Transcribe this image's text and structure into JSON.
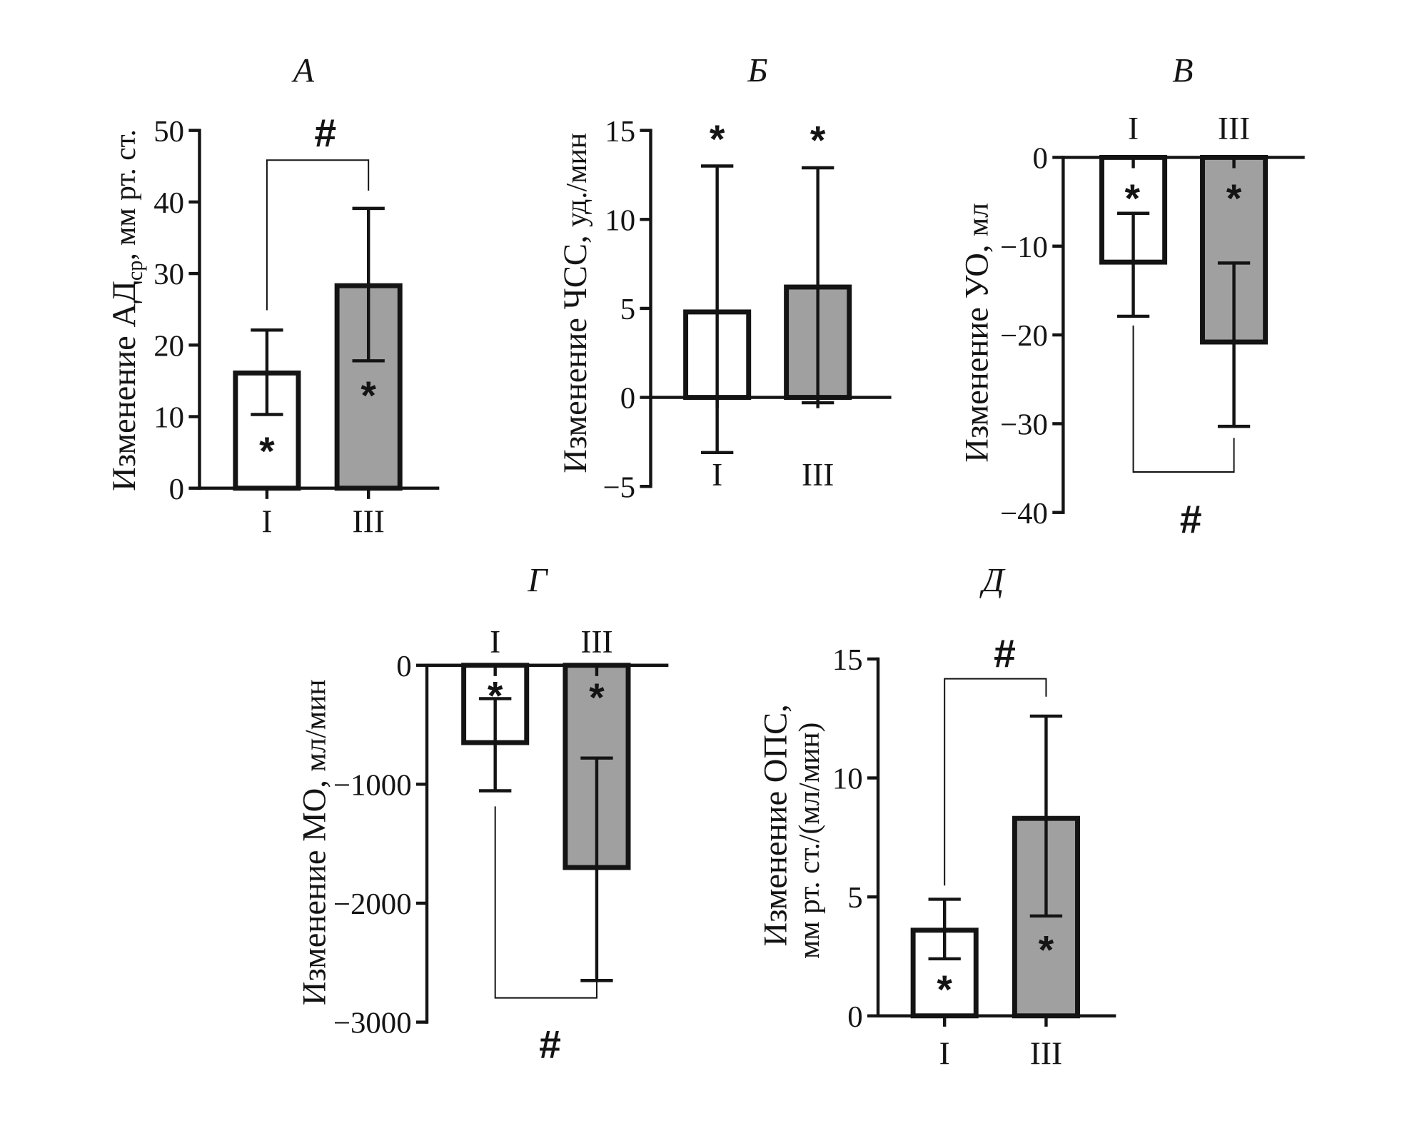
{
  "chart_data": [
    {
      "type": "bar",
      "title": "А",
      "ylabel": {
        "main": "Изменение АД",
        "sub": "ср",
        "unit": ", мм рт. ст."
      },
      "categories": [
        "I",
        "III"
      ],
      "values": [
        16.1,
        28.3
      ],
      "error_upper": [
        22.1,
        39.1
      ],
      "error_lower": [
        10.3,
        17.8
      ],
      "bar_colors": [
        "#ffffff",
        "#a0a0a0"
      ],
      "ylim": [
        0,
        50
      ],
      "yticks": [
        0,
        10,
        20,
        30,
        40,
        50
      ],
      "ytick_labels": [
        "0",
        "10",
        "20",
        "30",
        "40",
        "50"
      ],
      "significance": [
        "*",
        "*"
      ],
      "bracket_label": "#"
    },
    {
      "type": "bar",
      "title": "Б",
      "ylabel": {
        "main": "Изменение ЧСС,",
        "unit": "уд./мин"
      },
      "categories": [
        "I",
        "III"
      ],
      "values": [
        4.8,
        6.2
      ],
      "error_upper": [
        13.0,
        12.9
      ],
      "error_lower": [
        -3.1,
        -0.3
      ],
      "bar_colors": [
        "#ffffff",
        "#a0a0a0"
      ],
      "ylim": [
        -5,
        15
      ],
      "yticks": [
        -5,
        0,
        5,
        10,
        15
      ],
      "ytick_labels": [
        "−5",
        "0",
        "5",
        "10",
        "15"
      ],
      "significance": [
        "*",
        "*"
      ]
    },
    {
      "type": "bar",
      "title": "В",
      "ylabel": {
        "main": "Изменение УО,",
        "unit": "мл"
      },
      "categories": [
        "I",
        "III"
      ],
      "values": [
        -11.8,
        -20.8
      ],
      "error_upper": [
        -6.3,
        -11.9
      ],
      "error_lower": [
        -17.9,
        -30.3
      ],
      "bar_colors": [
        "#ffffff",
        "#a0a0a0"
      ],
      "ylim": [
        -40,
        0
      ],
      "yticks": [
        -40,
        -30,
        -20,
        -10,
        0
      ],
      "ytick_labels": [
        "−40",
        "−30",
        "−20",
        "−10",
        "0"
      ],
      "significance": [
        "*",
        "*"
      ],
      "bracket_label": "#"
    },
    {
      "type": "bar",
      "title": "Г",
      "ylabel": {
        "main": "Изменение МО,",
        "unit": "мл/мин"
      },
      "categories": [
        "I",
        "III"
      ],
      "values": [
        -650,
        -1700
      ],
      "error_upper": [
        -280,
        -780
      ],
      "error_lower": [
        -1055,
        -2650
      ],
      "bar_colors": [
        "#ffffff",
        "#a0a0a0"
      ],
      "ylim": [
        -3000,
        0
      ],
      "yticks": [
        -3000,
        -2000,
        -1000,
        0
      ],
      "ytick_labels": [
        "−3000",
        "−2000",
        "−1000",
        "0"
      ],
      "significance": [
        "*",
        "*"
      ],
      "bracket_label": "#"
    },
    {
      "type": "bar",
      "title": "Д",
      "ylabel": {
        "main": "Изменение ОПС,",
        "line2": "мм рт. ст./(мл/мин)"
      },
      "categories": [
        "I",
        "III"
      ],
      "values": [
        3.6,
        8.3
      ],
      "error_upper": [
        4.9,
        12.6
      ],
      "error_lower": [
        2.4,
        4.2
      ],
      "bar_colors": [
        "#ffffff",
        "#a0a0a0"
      ],
      "ylim": [
        0,
        15
      ],
      "yticks": [
        0,
        5,
        10,
        15
      ],
      "ytick_labels": [
        "0",
        "5",
        "10",
        "15"
      ],
      "significance": [
        "*",
        "*"
      ],
      "bracket_label": "#"
    }
  ]
}
